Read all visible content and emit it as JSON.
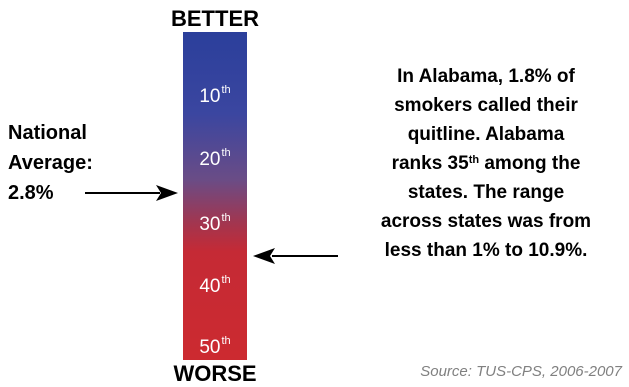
{
  "scale": {
    "top_label": "BETTER",
    "bottom_label": "WORSE",
    "ranks": [
      {
        "num": "10",
        "suffix": "th"
      },
      {
        "num": "20",
        "suffix": "th"
      },
      {
        "num": "30",
        "suffix": "th"
      },
      {
        "num": "40",
        "suffix": "th"
      },
      {
        "num": "50",
        "suffix": "th"
      }
    ],
    "colors": {
      "top": "#2b3f9b",
      "bottom": "#cc2a30"
    }
  },
  "national": {
    "line1": "National",
    "line2": "Average:",
    "value": "2.8%"
  },
  "description": {
    "line1": "In Alabama, 1.8% of",
    "line2": "smokers called their",
    "line3": "quitline. Alabama",
    "line4_pre": "ranks 35",
    "line4_sup": "th",
    "line4_post": " among the",
    "line5": "states. The range",
    "line6": "across states was from",
    "line7": "less than 1% to 10.9%."
  },
  "source": "Source: TUS-CPS, 2006-2007"
}
